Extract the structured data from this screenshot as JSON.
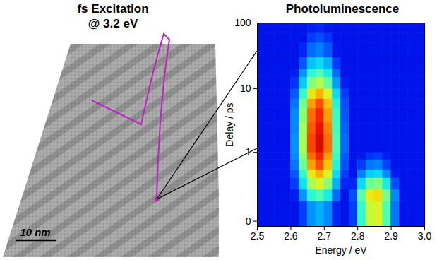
{
  "image_panel": {
    "title": [
      "fs Excitation",
      "@ 3.2 eV"
    ],
    "scale_bar": "10 nm"
  },
  "chart_data": {
    "type": "heatmap",
    "title": "Photoluminescence",
    "xlabel": "Energy / eV",
    "ylabel": "Delay / ps",
    "xlim": [
      2.5,
      3.0
    ],
    "xticks": [
      2.5,
      2.6,
      2.7,
      2.8,
      2.9,
      {
        "value": 3,
        "label": "3.0"
      }
    ],
    "ylim": [
      -0.02,
      100
    ],
    "yticks": [
      0,
      1,
      10,
      100
    ],
    "log": "y",
    "color_range": [
      0,
      1
    ],
    "x_edges": [
      2.5,
      2.525,
      2.55,
      2.575,
      2.6,
      2.625,
      2.65,
      2.675,
      2.7,
      2.725,
      2.75,
      2.775,
      2.8,
      2.825,
      2.85,
      2.875,
      2.9,
      2.925,
      2.95,
      2.975,
      3.0
    ],
    "y_edges": [
      -0.02,
      0.1,
      0.2,
      0.35,
      0.5,
      0.75,
      1,
      1.5,
      2,
      3,
      5,
      7,
      10,
      15,
      20,
      30,
      50,
      70,
      100
    ],
    "cells": [
      [
        0.12,
        0.12,
        0.12,
        0.12,
        0.12,
        0.18,
        0.27,
        0.3,
        0.26,
        0.15,
        0.12,
        0.18,
        0.42,
        0.57,
        0.6,
        0.45,
        0.24,
        0.12,
        0.12,
        0.12
      ],
      [
        0.12,
        0.12,
        0.12,
        0.12,
        0.14,
        0.27,
        0.41,
        0.45,
        0.38,
        0.23,
        0.12,
        0.2,
        0.46,
        0.62,
        0.65,
        0.49,
        0.26,
        0.13,
        0.12,
        0.12
      ],
      [
        0.12,
        0.12,
        0.12,
        0.12,
        0.18,
        0.36,
        0.54,
        0.6,
        0.51,
        0.3,
        0.15,
        0.15,
        0.35,
        0.48,
        0.5,
        0.38,
        0.2,
        0.12,
        0.12,
        0.12
      ],
      [
        0.12,
        0.12,
        0.12,
        0.12,
        0.21,
        0.42,
        0.63,
        0.7,
        0.6,
        0.35,
        0.18,
        0.12,
        0.25,
        0.33,
        0.35,
        0.26,
        0.14,
        0.12,
        0.12,
        0.12
      ],
      [
        0.12,
        0.12,
        0.12,
        0.12,
        0.24,
        0.48,
        0.72,
        0.8,
        0.68,
        0.4,
        0.2,
        0.12,
        0.18,
        0.24,
        0.25,
        0.19,
        0.12,
        0.12,
        0.12,
        0.12
      ],
      [
        0.12,
        0.12,
        0.12,
        0.12,
        0.26,
        0.51,
        0.77,
        0.85,
        0.72,
        0.43,
        0.21,
        0.12,
        0.13,
        0.17,
        0.18,
        0.14,
        0.12,
        0.12,
        0.12,
        0.12
      ],
      [
        0.12,
        0.12,
        0.12,
        0.12,
        0.27,
        0.54,
        0.81,
        0.9,
        0.77,
        0.45,
        0.23,
        0.12,
        0.12,
        0.12,
        0.12,
        0.12,
        0.12,
        0.12,
        0.12,
        0.12
      ],
      [
        0.12,
        0.12,
        0.12,
        0.12,
        0.27,
        0.54,
        0.81,
        0.9,
        0.77,
        0.45,
        0.23,
        0.12,
        0.12,
        0.12,
        0.12,
        0.12,
        0.12,
        0.12,
        0.12,
        0.12
      ],
      [
        0.12,
        0.12,
        0.12,
        0.12,
        0.26,
        0.53,
        0.79,
        0.88,
        0.75,
        0.44,
        0.22,
        0.12,
        0.12,
        0.12,
        0.12,
        0.12,
        0.12,
        0.12,
        0.12,
        0.12
      ],
      [
        0.12,
        0.12,
        0.12,
        0.12,
        0.26,
        0.51,
        0.77,
        0.85,
        0.72,
        0.43,
        0.21,
        0.12,
        0.12,
        0.12,
        0.12,
        0.12,
        0.12,
        0.12,
        0.12,
        0.12
      ],
      [
        0.12,
        0.12,
        0.12,
        0.12,
        0.24,
        0.48,
        0.72,
        0.8,
        0.68,
        0.4,
        0.2,
        0.12,
        0.12,
        0.12,
        0.12,
        0.12,
        0.12,
        0.12,
        0.12,
        0.12
      ],
      [
        0.12,
        0.12,
        0.12,
        0.12,
        0.21,
        0.42,
        0.63,
        0.7,
        0.6,
        0.35,
        0.18,
        0.12,
        0.12,
        0.12,
        0.12,
        0.12,
        0.12,
        0.12,
        0.12,
        0.12
      ],
      [
        0.12,
        0.12,
        0.12,
        0.12,
        0.17,
        0.33,
        0.5,
        0.55,
        0.47,
        0.28,
        0.14,
        0.12,
        0.12,
        0.12,
        0.12,
        0.12,
        0.12,
        0.12,
        0.12,
        0.12
      ],
      [
        0.12,
        0.12,
        0.12,
        0.12,
        0.14,
        0.27,
        0.41,
        0.45,
        0.38,
        0.23,
        0.12,
        0.12,
        0.12,
        0.12,
        0.12,
        0.12,
        0.12,
        0.12,
        0.12,
        0.12
      ],
      [
        0.12,
        0.12,
        0.12,
        0.12,
        0.12,
        0.21,
        0.32,
        0.35,
        0.3,
        0.18,
        0.12,
        0.12,
        0.12,
        0.12,
        0.12,
        0.12,
        0.12,
        0.12,
        0.12,
        0.12
      ],
      [
        0.12,
        0.12,
        0.12,
        0.12,
        0.12,
        0.15,
        0.23,
        0.25,
        0.21,
        0.13,
        0.12,
        0.12,
        0.12,
        0.12,
        0.12,
        0.12,
        0.12,
        0.12,
        0.12,
        0.12
      ],
      [
        0.12,
        0.12,
        0.12,
        0.12,
        0.12,
        0.12,
        0.18,
        0.2,
        0.17,
        0.12,
        0.12,
        0.12,
        0.12,
        0.12,
        0.12,
        0.12,
        0.12,
        0.12,
        0.12,
        0.12
      ],
      [
        0.12,
        0.12,
        0.12,
        0.12,
        0.12,
        0.12,
        0.14,
        0.15,
        0.13,
        0.12,
        0.12,
        0.12,
        0.12,
        0.12,
        0.12,
        0.12,
        0.12,
        0.12,
        0.12,
        0.12
      ]
    ]
  }
}
